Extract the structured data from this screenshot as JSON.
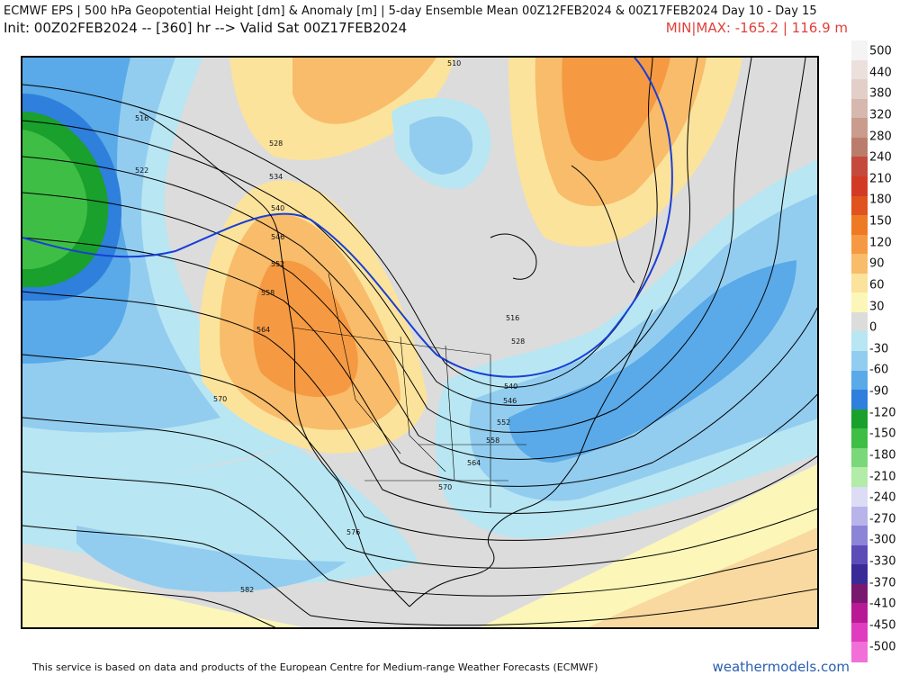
{
  "header": {
    "title": "ECMWF EPS | 500 hPa Geopotential Height [dm] & Anomaly [m] | 5-day Ensemble Mean 00Z12FEB2024 & 00Z17FEB2024   Day 10 - Day 15",
    "init_line": "Init: 00Z02FEB2024 -- [360] hr --> Valid Sat 00Z17FEB2024",
    "minmax": "MIN|MAX: -165.2 | 116.9 m"
  },
  "colorbar": {
    "labels": [
      "500",
      "440",
      "380",
      "320",
      "280",
      "240",
      "210",
      "180",
      "150",
      "120",
      "90",
      "60",
      "30",
      "0",
      "-30",
      "-60",
      "-90",
      "-120",
      "-150",
      "-180",
      "-210",
      "-240",
      "-270",
      "-300",
      "-330",
      "-370",
      "-410",
      "-450",
      "-500"
    ],
    "colors": [
      "#f4f4f4",
      "#ece0dc",
      "#e2cfc8",
      "#d6b8ae",
      "#c99c8e",
      "#bb7d6b",
      "#c54a3c",
      "#d33a26",
      "#e0531f",
      "#ee7a24",
      "#f59a42",
      "#f8bc6a",
      "#fbe39c",
      "#fcf7b8",
      "#dcdcdc",
      "#b8e6f2",
      "#92cdf0",
      "#5aa9e8",
      "#2f7fdc",
      "#1aa02c",
      "#3fbe46",
      "#7ad87a",
      "#b2eca8",
      "#dcdcf4",
      "#b8b4ea",
      "#8c84d6",
      "#5c4cb8",
      "#3a2a98",
      "#7a1870",
      "#b81a96",
      "#e03cc0",
      "#f070d8"
    ]
  },
  "map": {
    "contour_labels": [
      "510",
      "516",
      "522",
      "528",
      "534",
      "540",
      "546",
      "552",
      "558",
      "564",
      "570",
      "576",
      "582",
      "516",
      "528",
      "540",
      "546",
      "552",
      "558",
      "564",
      "570"
    ]
  },
  "footer": {
    "credit": "This service is based on data and products of the European Centre for Medium-range Weather Forecasts (ECMWF)",
    "brand": "weathermodels.com"
  }
}
